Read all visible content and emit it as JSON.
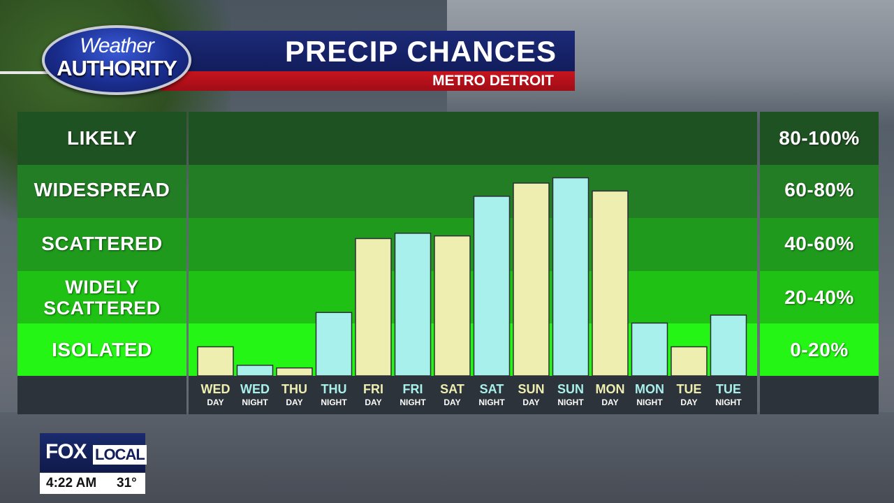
{
  "header": {
    "logo_line1": "Weather",
    "logo_line2": "AUTHORITY",
    "title": "PRECIP CHANCES",
    "subtitle": "METRO DETROIT"
  },
  "categories_left": [
    "LIKELY",
    "WIDESPREAD",
    "SCATTERED",
    "WIDELY SCATTERED",
    "ISOLATED"
  ],
  "left_labels": {
    "likely": "LIKELY",
    "widespread": "WIDESPREAD",
    "scattered": "SCATTERED",
    "widely_1": "WIDELY",
    "widely_2": "SCATTERED",
    "isolated": "ISOLATED"
  },
  "right_labels": {
    "likely": "80-100%",
    "widespread": "60-80%",
    "scattered": "40-60%",
    "widely": "20-40%",
    "isolated": "0-20%"
  },
  "colors": {
    "day_bar": "#eeeeb0",
    "night_bar": "#a8f0ec",
    "day_label": "#eeeeb0",
    "night_label": "#a8f0ec"
  },
  "chart_data": {
    "type": "bar",
    "title": "PRECIP CHANCES",
    "subtitle": "METRO DETROIT",
    "ylim": [
      0,
      100
    ],
    "y_bands": [
      "0-20%",
      "20-40%",
      "40-60%",
      "60-80%",
      "80-100%"
    ],
    "categories": [
      {
        "day": "WED",
        "period": "DAY"
      },
      {
        "day": "WED",
        "period": "NIGHT"
      },
      {
        "day": "THU",
        "period": "DAY"
      },
      {
        "day": "THU",
        "period": "NIGHT"
      },
      {
        "day": "FRI",
        "period": "DAY"
      },
      {
        "day": "FRI",
        "period": "NIGHT"
      },
      {
        "day": "SAT",
        "period": "DAY"
      },
      {
        "day": "SAT",
        "period": "NIGHT"
      },
      {
        "day": "SUN",
        "period": "DAY"
      },
      {
        "day": "SUN",
        "period": "NIGHT"
      },
      {
        "day": "MON",
        "period": "DAY"
      },
      {
        "day": "MON",
        "period": "NIGHT"
      },
      {
        "day": "TUE",
        "period": "DAY"
      },
      {
        "day": "TUE",
        "period": "NIGHT"
      }
    ],
    "values": [
      11,
      4,
      3,
      24,
      52,
      54,
      53,
      68,
      73,
      75,
      70,
      20,
      11,
      23
    ]
  },
  "badge": {
    "fox": "FOX",
    "local": "LOCAL",
    "time": "4:22 AM",
    "temp": "31°"
  }
}
